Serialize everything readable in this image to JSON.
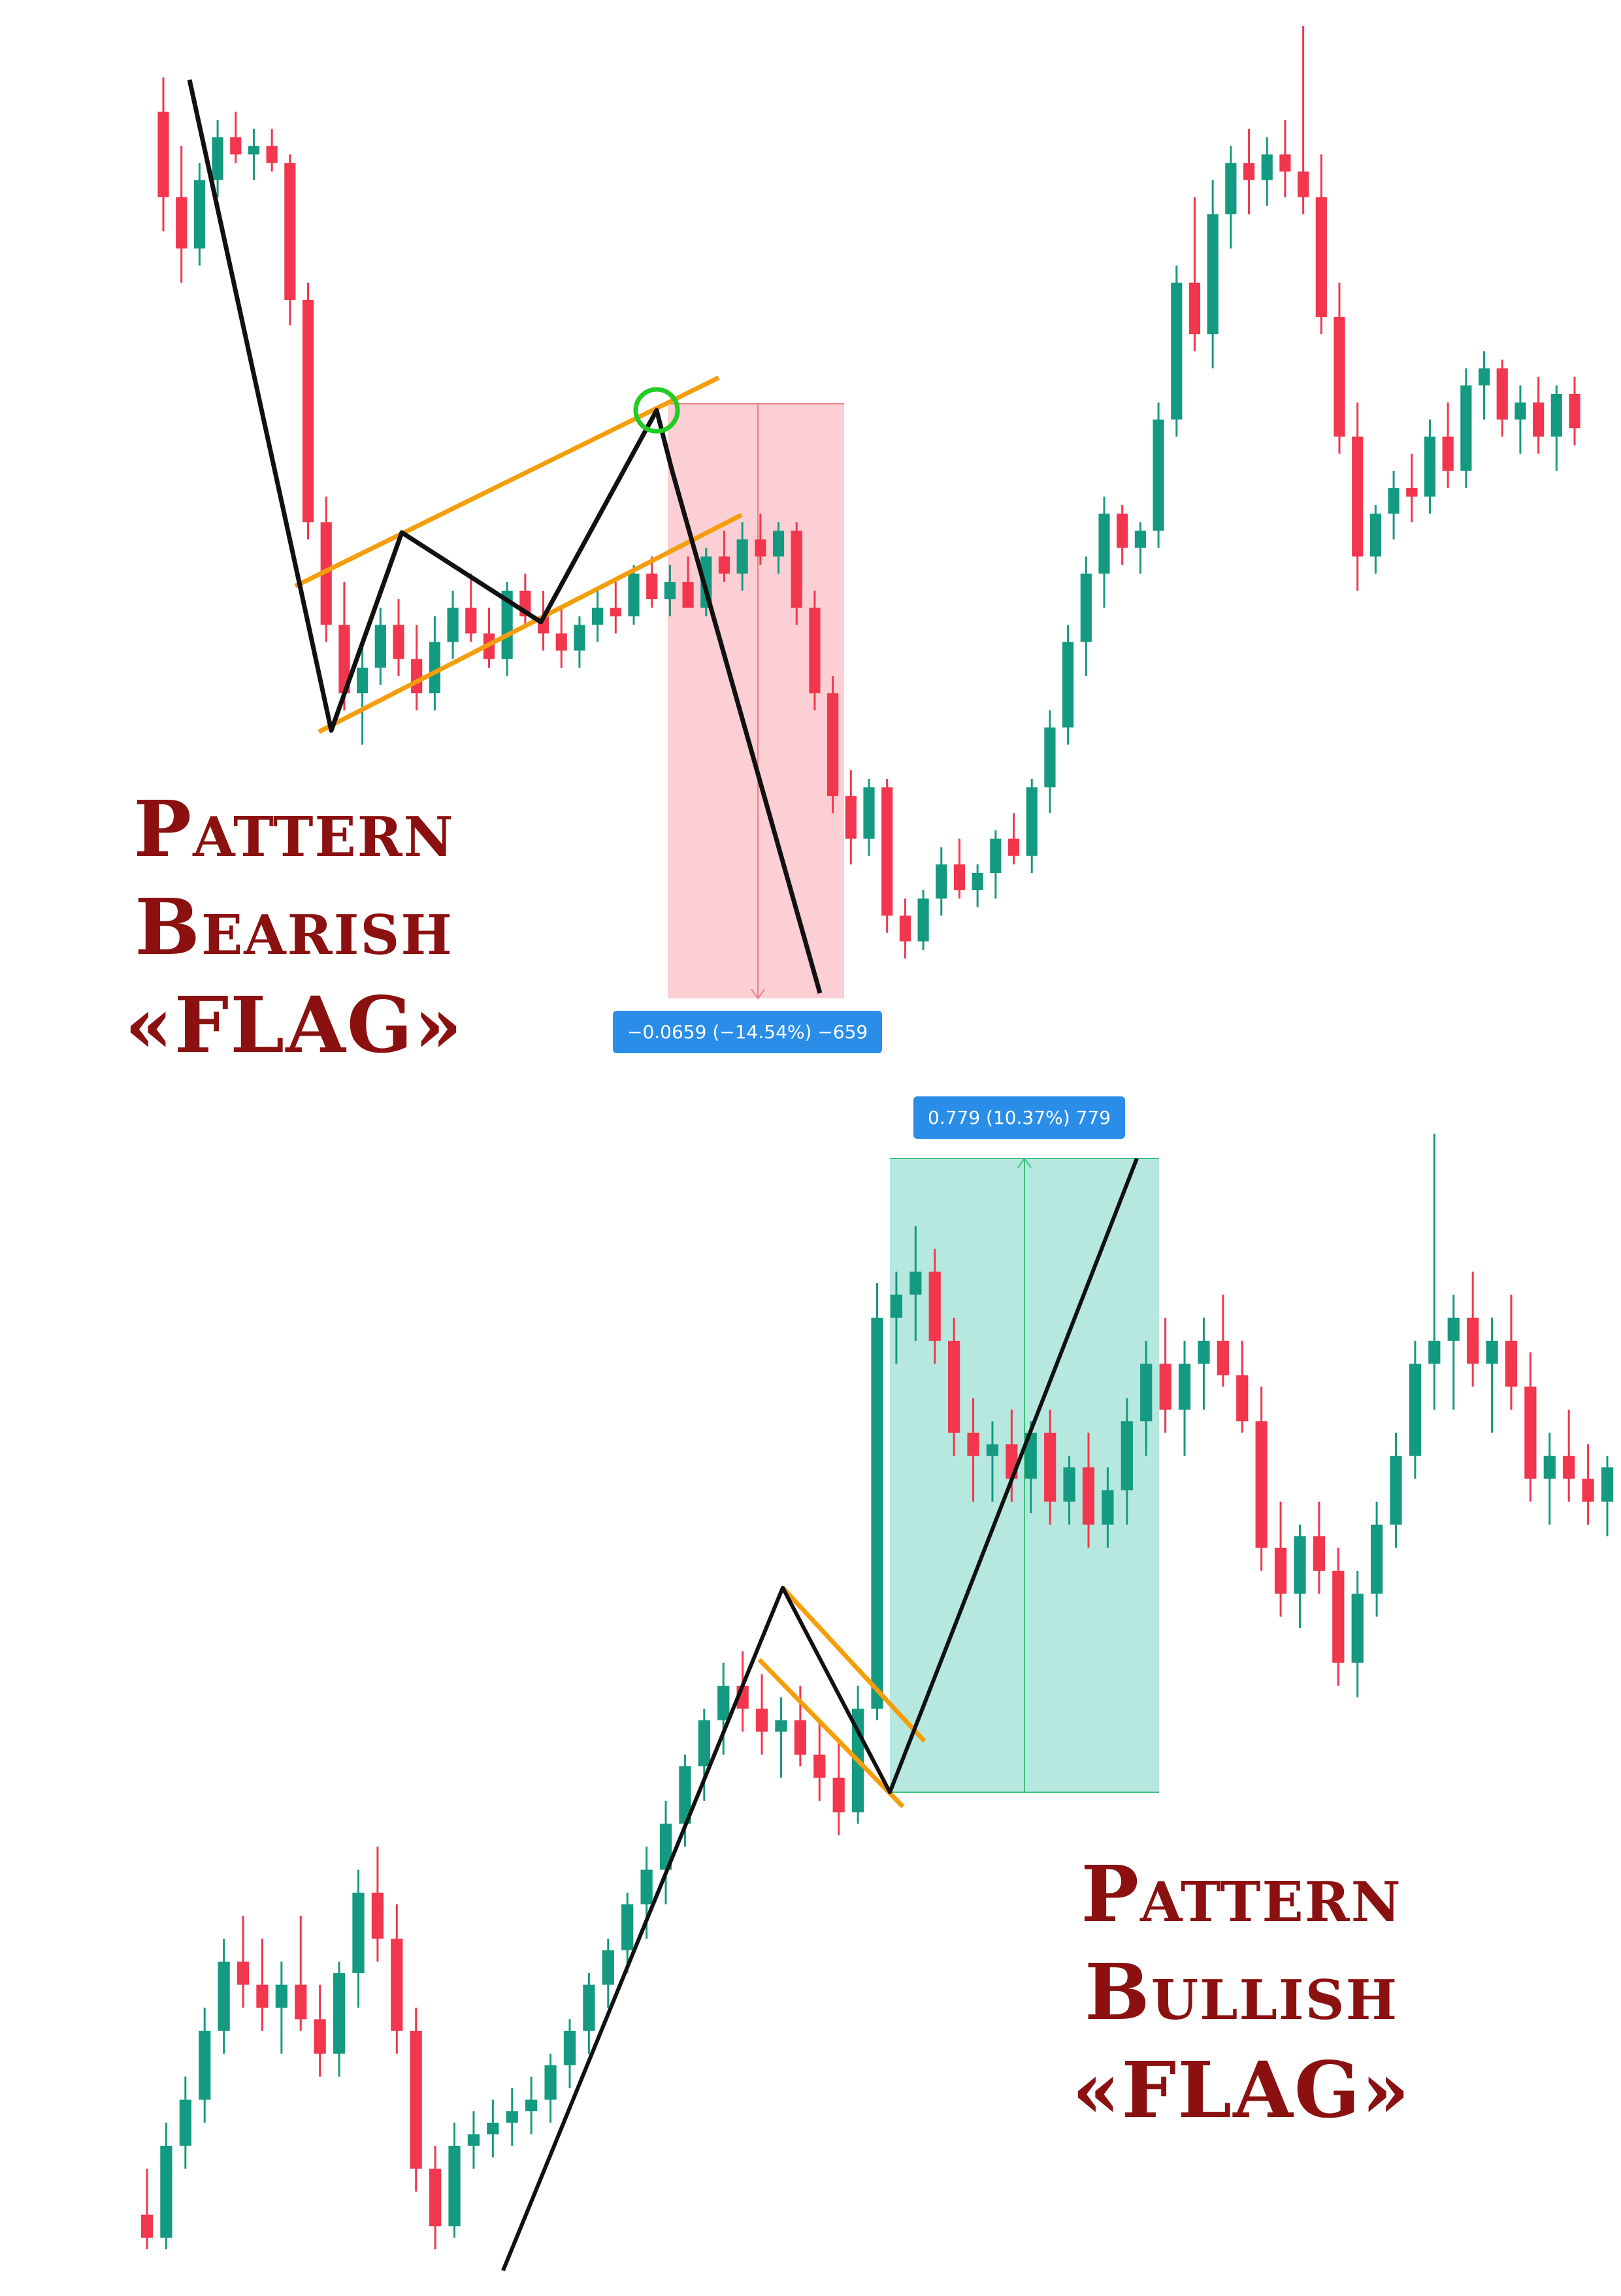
{
  "bearish": {
    "title": [
      "Pattern",
      "Bearish",
      "«FLAG»"
    ],
    "measure_label": "−0.0659 (−14.54%) −659",
    "colors": {
      "up": "#149a80",
      "down": "#f2364d",
      "zone": "#fbcfd3",
      "channel": "#f59e0b",
      "path": "#111111",
      "marker": "#22cc22"
    }
  },
  "bullish": {
    "title": [
      "Pattern",
      "Bullish",
      "«FLAG»"
    ],
    "measure_label": "0.779 (10.37%) 779",
    "colors": {
      "up": "#149a80",
      "down": "#f2364d",
      "zone": "#b6e8e0",
      "channel": "#f59e0b",
      "path": "#111111"
    }
  },
  "chart_data": [
    {
      "type": "candlestick",
      "pattern": "bearish flag",
      "measurement": {
        "change": -0.0659,
        "percent": -14.54,
        "ticks": -659
      },
      "price_path": [
        100,
        26,
        45,
        32,
        52,
        2
      ],
      "candles": [
        [
          100,
          104,
          86,
          90
        ],
        [
          90,
          96,
          80,
          84
        ],
        [
          84,
          94,
          82,
          92
        ],
        [
          92,
          99,
          90,
          97
        ],
        [
          97,
          100,
          94,
          95
        ],
        [
          95,
          98,
          92,
          96
        ],
        [
          96,
          98,
          93,
          94
        ],
        [
          94,
          95,
          75,
          78
        ],
        [
          78,
          80,
          50,
          52
        ],
        [
          52,
          55,
          38,
          40
        ],
        [
          40,
          45,
          30,
          32
        ],
        [
          32,
          38,
          26,
          35
        ],
        [
          35,
          42,
          33,
          40
        ],
        [
          40,
          43,
          34,
          36
        ],
        [
          36,
          40,
          30,
          32
        ],
        [
          32,
          41,
          30,
          38
        ],
        [
          38,
          44,
          36,
          42
        ],
        [
          42,
          46,
          38,
          39
        ],
        [
          39,
          42,
          35,
          36
        ],
        [
          36,
          45,
          34,
          44
        ],
        [
          44,
          46,
          40,
          41
        ],
        [
          41,
          44,
          37,
          39
        ],
        [
          39,
          42,
          35,
          37
        ],
        [
          37,
          41,
          35,
          40
        ],
        [
          40,
          44,
          38,
          42
        ],
        [
          42,
          45,
          39,
          41
        ],
        [
          41,
          47,
          40,
          46
        ],
        [
          46,
          48,
          42,
          43
        ],
        [
          43,
          47,
          41,
          45
        ],
        [
          45,
          48,
          42,
          42
        ],
        [
          42,
          49,
          41,
          48
        ],
        [
          48,
          51,
          45,
          46
        ],
        [
          46,
          52,
          44,
          50
        ],
        [
          50,
          53,
          47,
          48
        ],
        [
          48,
          52,
          46,
          51
        ],
        [
          51,
          52,
          40,
          42
        ],
        [
          42,
          44,
          30,
          32
        ],
        [
          32,
          34,
          18,
          20
        ],
        [
          20,
          23,
          12,
          15
        ],
        [
          15,
          22,
          13,
          21
        ],
        [
          21,
          22,
          4,
          6
        ],
        [
          6,
          8,
          1,
          3
        ],
        [
          3,
          9,
          2,
          8
        ],
        [
          8,
          14,
          6,
          12
        ],
        [
          12,
          15,
          8,
          9
        ],
        [
          9,
          12,
          7,
          11
        ],
        [
          11,
          16,
          8,
          15
        ],
        [
          15,
          18,
          12,
          13
        ],
        [
          13,
          22,
          11,
          21
        ],
        [
          21,
          30,
          18,
          28
        ],
        [
          28,
          40,
          26,
          38
        ],
        [
          38,
          48,
          34,
          46
        ],
        [
          46,
          55,
          42,
          53
        ],
        [
          53,
          54,
          47,
          49
        ],
        [
          49,
          52,
          46,
          51
        ],
        [
          51,
          66,
          49,
          64
        ],
        [
          64,
          82,
          62,
          80
        ],
        [
          80,
          90,
          72,
          74
        ],
        [
          74,
          92,
          70,
          88
        ],
        [
          88,
          96,
          84,
          94
        ],
        [
          94,
          98,
          88,
          92
        ],
        [
          92,
          97,
          89,
          95
        ],
        [
          95,
          99,
          90,
          93
        ],
        [
          93,
          110,
          88,
          90
        ],
        [
          90,
          95,
          74,
          76
        ],
        [
          76,
          80,
          60,
          62
        ],
        [
          62,
          66,
          44,
          48
        ],
        [
          48,
          54,
          46,
          53
        ],
        [
          53,
          58,
          50,
          56
        ],
        [
          56,
          60,
          52,
          55
        ],
        [
          55,
          64,
          53,
          62
        ],
        [
          62,
          66,
          56,
          58
        ],
        [
          58,
          70,
          56,
          68
        ],
        [
          68,
          72,
          64,
          70
        ],
        [
          70,
          71,
          62,
          64
        ],
        [
          64,
          68,
          60,
          66
        ],
        [
          66,
          69,
          60,
          62
        ],
        [
          62,
          68,
          58,
          67
        ],
        [
          67,
          69,
          61,
          63
        ]
      ]
    },
    {
      "type": "candlestick",
      "pattern": "bullish flag",
      "measurement": {
        "change": 0.779,
        "percent": 10.37,
        "ticks": 779
      },
      "price_path": [
        2,
        53,
        38,
        92
      ],
      "candles": [
        [
          4,
          8,
          1,
          2
        ],
        [
          2,
          12,
          1,
          10
        ],
        [
          10,
          16,
          8,
          14
        ],
        [
          14,
          22,
          12,
          20
        ],
        [
          20,
          28,
          18,
          26
        ],
        [
          26,
          30,
          22,
          24
        ],
        [
          24,
          28,
          20,
          22
        ],
        [
          22,
          26,
          18,
          24
        ],
        [
          24,
          30,
          20,
          21
        ],
        [
          21,
          24,
          16,
          18
        ],
        [
          18,
          26,
          16,
          25
        ],
        [
          25,
          34,
          22,
          32
        ],
        [
          32,
          36,
          26,
          28
        ],
        [
          28,
          31,
          18,
          20
        ],
        [
          20,
          22,
          6,
          8
        ],
        [
          8,
          10,
          1,
          3
        ],
        [
          3,
          12,
          2,
          10
        ],
        [
          10,
          13,
          8,
          11
        ],
        [
          11,
          14,
          9,
          12
        ],
        [
          12,
          15,
          10,
          13
        ],
        [
          13,
          16,
          11,
          14
        ],
        [
          14,
          18,
          12,
          17
        ],
        [
          17,
          21,
          15,
          20
        ],
        [
          20,
          25,
          18,
          24
        ],
        [
          24,
          28,
          22,
          27
        ],
        [
          27,
          32,
          25,
          31
        ],
        [
          31,
          36,
          28,
          34
        ],
        [
          34,
          40,
          31,
          38
        ],
        [
          38,
          44,
          36,
          43
        ],
        [
          43,
          48,
          40,
          47
        ],
        [
          47,
          52,
          44,
          50
        ],
        [
          50,
          53,
          46,
          48
        ],
        [
          48,
          51,
          44,
          46
        ],
        [
          46,
          49,
          42,
          47
        ],
        [
          47,
          50,
          43,
          44
        ],
        [
          44,
          47,
          40,
          42
        ],
        [
          42,
          45,
          37,
          39
        ],
        [
          39,
          50,
          38,
          48
        ],
        [
          48,
          85,
          47,
          82
        ],
        [
          82,
          86,
          78,
          84
        ],
        [
          84,
          90,
          80,
          86
        ],
        [
          86,
          88,
          78,
          80
        ],
        [
          80,
          82,
          70,
          72
        ],
        [
          72,
          75,
          66,
          70
        ],
        [
          70,
          73,
          66,
          71
        ],
        [
          71,
          74,
          66,
          68
        ],
        [
          68,
          73,
          65,
          72
        ],
        [
          72,
          74,
          64,
          66
        ],
        [
          66,
          70,
          64,
          69
        ],
        [
          69,
          72,
          62,
          64
        ],
        [
          64,
          69,
          62,
          67
        ],
        [
          67,
          75,
          64,
          73
        ],
        [
          73,
          80,
          70,
          78
        ],
        [
          78,
          82,
          72,
          74
        ],
        [
          74,
          80,
          70,
          78
        ],
        [
          78,
          82,
          74,
          80
        ],
        [
          80,
          84,
          76,
          77
        ],
        [
          77,
          80,
          72,
          73
        ],
        [
          73,
          76,
          60,
          62
        ],
        [
          62,
          66,
          56,
          58
        ],
        [
          58,
          64,
          55,
          63
        ],
        [
          63,
          66,
          58,
          60
        ],
        [
          60,
          62,
          50,
          52
        ],
        [
          52,
          60,
          49,
          58
        ],
        [
          58,
          66,
          56,
          64
        ],
        [
          64,
          72,
          62,
          70
        ],
        [
          70,
          80,
          68,
          78
        ],
        [
          78,
          98,
          74,
          80
        ],
        [
          80,
          84,
          74,
          82
        ],
        [
          82,
          86,
          76,
          78
        ],
        [
          78,
          82,
          72,
          80
        ],
        [
          80,
          84,
          74,
          76
        ],
        [
          76,
          79,
          66,
          68
        ],
        [
          68,
          72,
          64,
          70
        ],
        [
          70,
          74,
          66,
          68
        ],
        [
          68,
          71,
          64,
          66
        ],
        [
          66,
          70,
          63,
          69
        ]
      ]
    }
  ]
}
